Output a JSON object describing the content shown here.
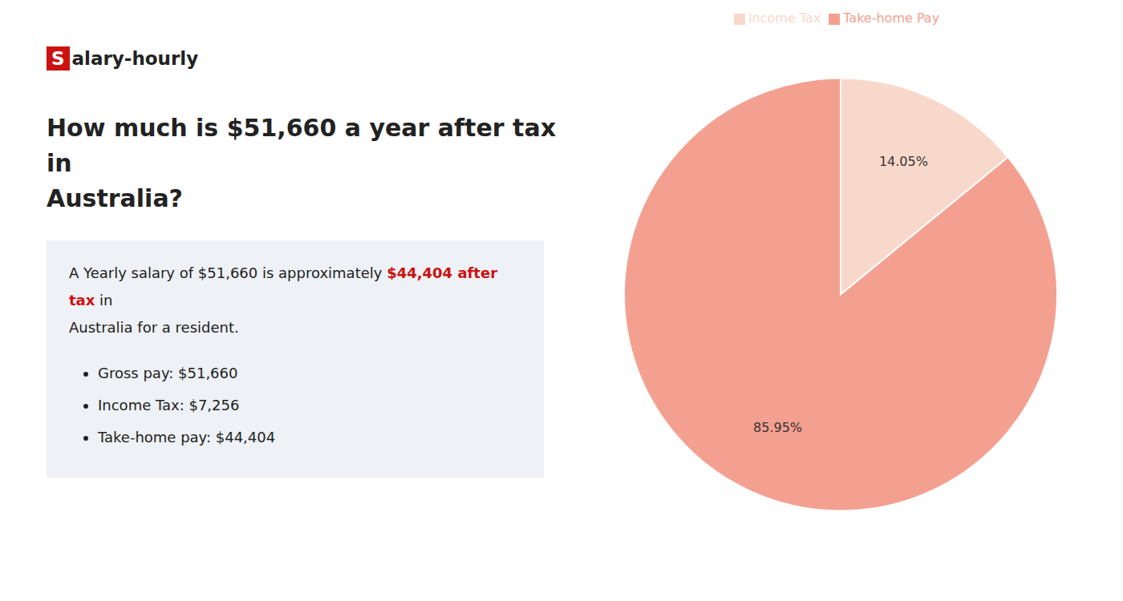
{
  "chart_data": {
    "type": "pie",
    "title": [
      "How much is $51,660 a year after tax in",
      "Australia?"
    ],
    "annotations": {
      "logo": [
        {
          "text": "S",
          "color": "#cc1111"
        },
        {
          "text": "alary-hourly"
        }
      ],
      "summary": [
        [
          {
            "text": "A Yearly salary of $51,660 is approximately "
          },
          {
            "text": "$44,404 after tax",
            "color": "#cc1111"
          },
          {
            "text": " in"
          }
        ],
        [
          {
            "text": "Australia for a resident."
          }
        ]
      ],
      "bullets": [
        "Gross pay: $51,660",
        "Income Tax: $7,256",
        "Take-home pay: $44,404"
      ]
    },
    "categories": [
      "Income Tax",
      "Take-home Pay"
    ],
    "values": [
      14.05,
      85.95
    ],
    "value_labels": [
      "14.05%",
      "85.95%"
    ],
    "colors": [
      "#f9d8cc",
      "#f4a090"
    ],
    "data_labels": true,
    "legend": "top"
  }
}
